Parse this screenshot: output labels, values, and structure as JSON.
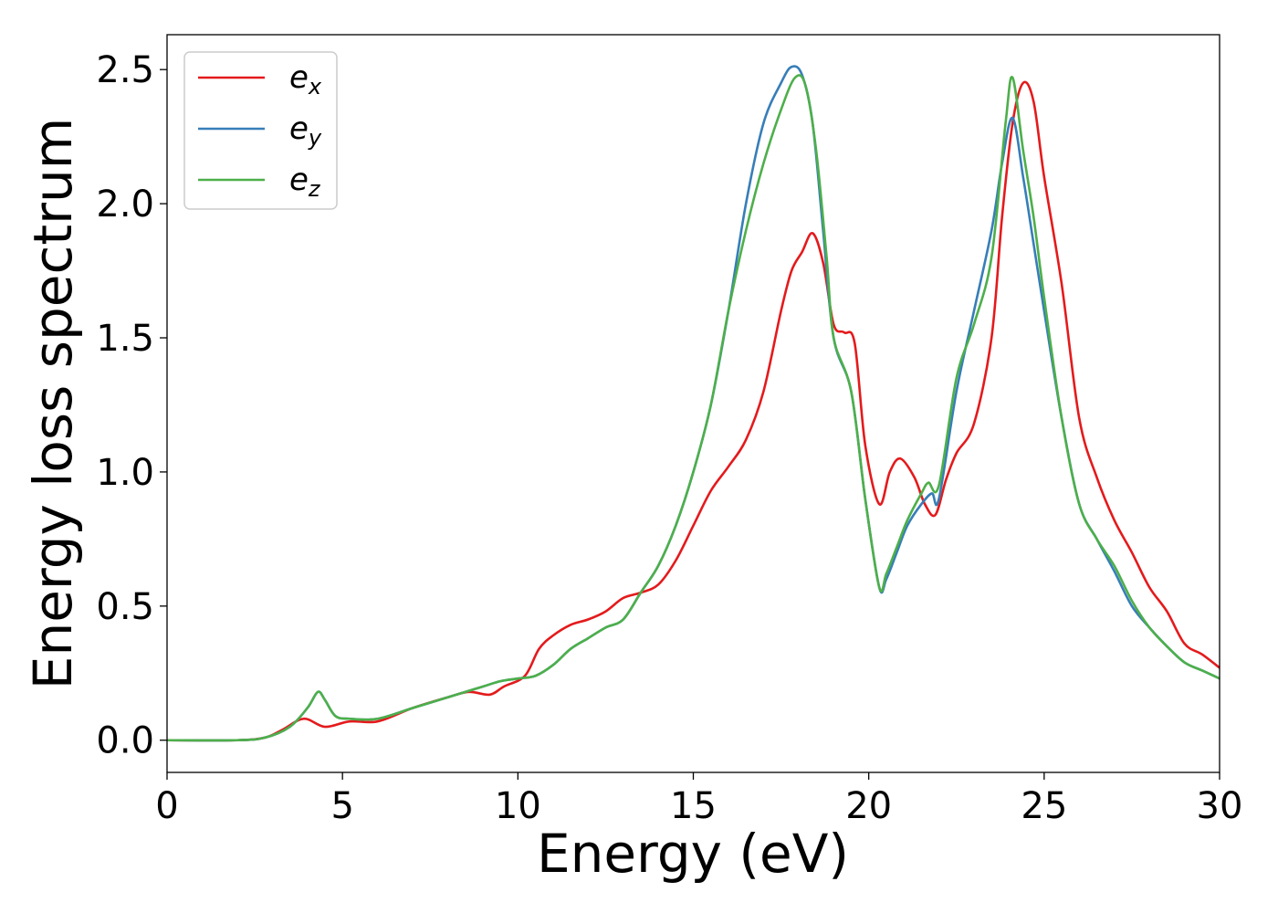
{
  "chart_data": {
    "type": "line",
    "xlabel": "Energy (eV)",
    "ylabel": "Energy loss spectrum",
    "xlim": [
      0,
      30
    ],
    "ylim": [
      -0.12,
      2.63
    ],
    "xticks": [
      "0",
      "5",
      "10",
      "15",
      "20",
      "25",
      "30"
    ],
    "yticks": [
      "0.0",
      "0.5",
      "1.0",
      "1.5",
      "2.0",
      "2.5"
    ],
    "grid": false,
    "legend_position": "upper-left",
    "series": [
      {
        "name_base": "e",
        "name_sub": "x",
        "color": "#e41a1c",
        "x": [
          0,
          2,
          2.8,
          3.3,
          3.9,
          4.5,
          5.2,
          6.0,
          7.0,
          8.0,
          8.6,
          9.2,
          9.6,
          10.2,
          10.6,
          11.0,
          11.5,
          12.0,
          12.5,
          13.0,
          13.5,
          14.0,
          14.5,
          15.0,
          15.5,
          16.0,
          16.5,
          17.0,
          17.5,
          17.8,
          18.1,
          18.4,
          18.7,
          19.0,
          19.3,
          19.6,
          19.9,
          20.3,
          20.6,
          20.9,
          21.3,
          21.6,
          21.9,
          22.2,
          22.5,
          23.0,
          23.5,
          23.8,
          24.1,
          24.4,
          24.7,
          25.0,
          25.5,
          26.0,
          26.5,
          27.0,
          27.5,
          28.0,
          28.5,
          29.0,
          29.5,
          30.0
        ],
        "y": [
          0,
          0,
          0.01,
          0.04,
          0.08,
          0.05,
          0.07,
          0.07,
          0.12,
          0.16,
          0.18,
          0.17,
          0.2,
          0.24,
          0.34,
          0.39,
          0.43,
          0.45,
          0.48,
          0.53,
          0.55,
          0.58,
          0.67,
          0.8,
          0.93,
          1.02,
          1.12,
          1.3,
          1.6,
          1.75,
          1.82,
          1.89,
          1.78,
          1.55,
          1.52,
          1.48,
          1.1,
          0.88,
          1.0,
          1.05,
          0.98,
          0.88,
          0.84,
          0.97,
          1.07,
          1.18,
          1.5,
          1.95,
          2.3,
          2.45,
          2.38,
          2.1,
          1.7,
          1.2,
          0.98,
          0.82,
          0.7,
          0.57,
          0.48,
          0.36,
          0.32,
          0.27
        ]
      },
      {
        "name_base": "e",
        "name_sub": "y",
        "color": "#377eb8",
        "x": [
          0,
          2,
          2.8,
          3.5,
          4.0,
          4.3,
          4.5,
          4.8,
          5.2,
          6.0,
          7.0,
          8.0,
          9.0,
          9.5,
          10.0,
          10.5,
          11.0,
          11.5,
          12.0,
          12.5,
          13.0,
          13.5,
          14.0,
          14.5,
          15.0,
          15.5,
          16.0,
          16.5,
          17.0,
          17.5,
          17.8,
          18.1,
          18.4,
          18.7,
          19.0,
          19.5,
          19.9,
          20.3,
          20.5,
          20.8,
          21.1,
          21.5,
          21.8,
          22.0,
          22.5,
          23.0,
          23.5,
          23.8,
          24.1,
          24.4,
          24.7,
          25.0,
          25.5,
          26.0,
          26.5,
          27.0,
          27.5,
          28.0,
          28.5,
          29.0,
          29.5,
          30.0
        ],
        "y": [
          0,
          0,
          0.01,
          0.05,
          0.12,
          0.18,
          0.15,
          0.09,
          0.08,
          0.08,
          0.12,
          0.16,
          0.2,
          0.22,
          0.23,
          0.24,
          0.28,
          0.34,
          0.38,
          0.42,
          0.45,
          0.55,
          0.65,
          0.8,
          1.0,
          1.25,
          1.6,
          2.0,
          2.3,
          2.45,
          2.51,
          2.48,
          2.3,
          1.9,
          1.5,
          1.3,
          0.9,
          0.57,
          0.6,
          0.7,
          0.8,
          0.88,
          0.92,
          0.9,
          1.3,
          1.6,
          1.9,
          2.15,
          2.32,
          2.1,
          1.85,
          1.6,
          1.2,
          0.88,
          0.75,
          0.63,
          0.5,
          0.42,
          0.35,
          0.29,
          0.26,
          0.23
        ]
      },
      {
        "name_base": "e",
        "name_sub": "z",
        "color": "#4daf4a",
        "x": [
          0,
          2,
          2.8,
          3.5,
          4.0,
          4.3,
          4.5,
          4.8,
          5.2,
          6.0,
          7.0,
          8.0,
          9.0,
          9.5,
          10.0,
          10.5,
          11.0,
          11.5,
          12.0,
          12.5,
          13.0,
          13.5,
          14.0,
          14.5,
          15.0,
          15.5,
          16.0,
          16.5,
          17.0,
          17.5,
          17.9,
          18.2,
          18.5,
          18.8,
          19.0,
          19.5,
          19.9,
          20.3,
          20.5,
          20.8,
          21.1,
          21.5,
          21.7,
          22.0,
          22.5,
          23.0,
          23.5,
          23.9,
          24.1,
          24.4,
          24.7,
          25.0,
          25.5,
          26.0,
          26.5,
          27.0,
          27.5,
          28.0,
          28.5,
          29.0,
          29.5,
          30.0
        ],
        "y": [
          0,
          0,
          0.01,
          0.05,
          0.12,
          0.18,
          0.15,
          0.09,
          0.08,
          0.08,
          0.12,
          0.16,
          0.2,
          0.22,
          0.23,
          0.24,
          0.28,
          0.34,
          0.38,
          0.42,
          0.45,
          0.55,
          0.65,
          0.8,
          1.0,
          1.25,
          1.6,
          1.9,
          2.15,
          2.35,
          2.47,
          2.44,
          2.2,
          1.8,
          1.5,
          1.3,
          0.9,
          0.57,
          0.62,
          0.72,
          0.82,
          0.92,
          0.96,
          0.95,
          1.35,
          1.55,
          1.8,
          2.3,
          2.47,
          2.2,
          1.95,
          1.65,
          1.2,
          0.88,
          0.75,
          0.65,
          0.52,
          0.42,
          0.35,
          0.29,
          0.26,
          0.23
        ]
      }
    ]
  }
}
